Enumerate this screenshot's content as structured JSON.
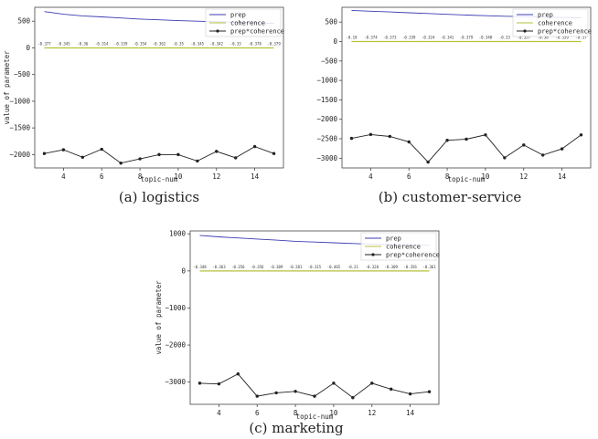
{
  "chart_data": [
    {
      "type": "line",
      "caption": "(a) logistics",
      "xlabel": "topic-num",
      "ylabel": "value of parameter",
      "xlim": [
        2.5,
        15.5
      ],
      "ylim": [
        -2250,
        760
      ],
      "xticks": [
        4,
        6,
        8,
        10,
        12,
        14
      ],
      "yticks": [
        500,
        0,
        -500,
        -1000,
        -1500,
        -2000
      ],
      "ytick_labels": [
        "500",
        "0",
        "−500",
        "−1000",
        "−1500",
        "−2000"
      ],
      "legend": "top-right",
      "x": [
        3,
        4,
        5,
        6,
        7,
        8,
        9,
        10,
        11,
        12,
        13,
        14,
        15
      ],
      "series": [
        {
          "name": "prep",
          "color": "#3b3bb3",
          "marker": "none",
          "values": [
            680,
            630,
            600,
            580,
            560,
            540,
            525,
            510,
            500,
            490,
            480,
            470,
            460
          ]
        },
        {
          "name": "coherence",
          "color": "#b5c23a",
          "marker": "none",
          "values": [
            -0.377,
            -0.345,
            -0.36,
            -0.314,
            -0.339,
            -0.354,
            -0.362,
            -0.35,
            -0.345,
            -0.342,
            -0.33,
            -0.378,
            -0.379
          ],
          "labels": [
            "-0.377",
            "-0.345",
            "-0.36",
            "-0.314",
            "-0.339",
            "-0.354",
            "-0.362",
            "-0.35",
            "-0.345",
            "-0.342",
            "-0.33",
            "-0.378",
            "-0.379"
          ]
        },
        {
          "name": "prep*coherence",
          "color": "#222222",
          "marker": "dot",
          "values": [
            -1980,
            -1910,
            -2050,
            -1900,
            -2160,
            -2080,
            -2000,
            -2000,
            -2120,
            -1940,
            -2060,
            -1850,
            -1980
          ]
        }
      ]
    },
    {
      "type": "line",
      "caption": "(b) customer-service",
      "xlabel": "topic-num",
      "ylabel": "",
      "xlim": [
        2.5,
        15.5
      ],
      "ylim": [
        -3250,
        880
      ],
      "xticks": [
        4,
        6,
        8,
        10,
        12,
        14
      ],
      "yticks": [
        500,
        0,
        -500,
        -1000,
        -1500,
        -2000,
        -2500,
        -3000
      ],
      "ytick_labels": [
        "500",
        "0",
        "−500",
        "−1000",
        "−1500",
        "−2000",
        "−2500",
        "−3000"
      ],
      "legend": "top-right",
      "x": [
        3,
        4,
        5,
        6,
        7,
        8,
        9,
        10,
        11,
        12,
        13,
        14,
        15
      ],
      "series": [
        {
          "name": "prep",
          "color": "#3b3bb3",
          "marker": "none",
          "values": [
            800,
            780,
            760,
            740,
            720,
            700,
            680,
            665,
            650,
            640,
            630,
            620,
            610
          ]
        },
        {
          "name": "coherence",
          "color": "#b5c23a",
          "marker": "none",
          "values": [
            -0.18,
            -0.374,
            -0.373,
            -0.339,
            -0.324,
            -0.341,
            -0.379,
            -0.348,
            -0.33,
            -0.357,
            -0.38,
            -0.339,
            -0.37
          ],
          "labels": [
            "-0.18",
            "-0.374",
            "-0.373",
            "-0.339",
            "-0.324",
            "-0.341",
            "-0.379",
            "-0.348",
            "-0.33",
            "-0.357",
            "-0.38",
            "-0.339",
            "-0.37"
          ]
        },
        {
          "name": "prep*coherence",
          "color": "#222222",
          "marker": "dot",
          "values": [
            -2490,
            -2390,
            -2440,
            -2580,
            -3100,
            -2540,
            -2510,
            -2400,
            -2990,
            -2660,
            -2920,
            -2760,
            -2400
          ]
        }
      ]
    },
    {
      "type": "line",
      "caption": "(c) marketing",
      "xlabel": "topic-num",
      "ylabel": "value of parameter",
      "xlim": [
        2.5,
        15.5
      ],
      "ylim": [
        -3600,
        1080
      ],
      "xticks": [
        4,
        6,
        8,
        10,
        12,
        14
      ],
      "yticks": [
        1000,
        0,
        -1000,
        -2000,
        -3000
      ],
      "ytick_labels": [
        "1000",
        "0",
        "−1000",
        "−2000",
        "−3000"
      ],
      "legend": "top-right",
      "x": [
        3,
        4,
        5,
        6,
        7,
        8,
        9,
        10,
        11,
        12,
        13,
        14,
        15
      ],
      "series": [
        {
          "name": "prep",
          "color": "#3b3bb3",
          "marker": "none",
          "values": [
            960,
            920,
            890,
            860,
            830,
            800,
            780,
            760,
            740,
            720,
            710,
            700,
            690
          ]
        },
        {
          "name": "coherence",
          "color": "#b5c23a",
          "marker": "none",
          "values": [
            -0.348,
            -0.363,
            -0.356,
            -0.356,
            -0.309,
            -0.281,
            -0.315,
            -0.465,
            -0.21,
            -0.328,
            -0.309,
            -0.356,
            -0.361
          ],
          "labels": [
            "-0.348",
            "-0.363",
            "-0.356",
            "-0.356",
            "-0.309",
            "-0.281",
            "-0.315",
            "-0.465",
            "-0.21",
            "-0.328",
            "-0.309",
            "-0.356",
            "-0.361"
          ]
        },
        {
          "name": "prep*coherence",
          "color": "#222222",
          "marker": "dot",
          "values": [
            -3030,
            -3050,
            -2780,
            -3380,
            -3290,
            -3250,
            -3380,
            -3030,
            -3420,
            -3030,
            -3190,
            -3320,
            -3260
          ]
        }
      ]
    }
  ]
}
